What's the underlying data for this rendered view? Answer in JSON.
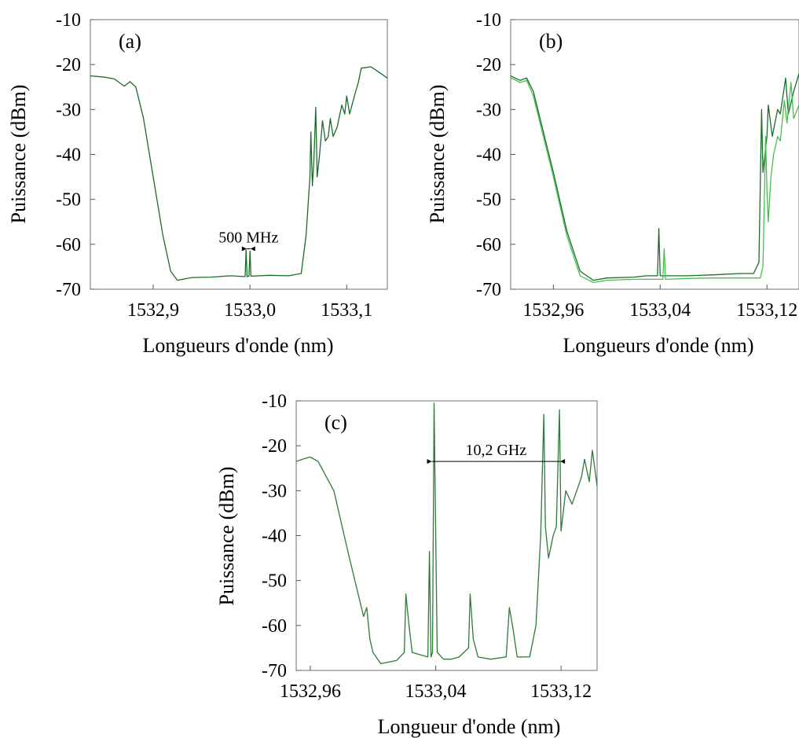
{
  "chart_data": [
    {
      "type": "line",
      "panel_label": "(a)",
      "ylabel": "Puissance (dBm)",
      "xlabel": "Longueurs d'onde (nm)",
      "xlim": [
        1532.835,
        1533.142
      ],
      "ylim": [
        -70,
        -10
      ],
      "xticks": [
        1532.9,
        1533.0,
        1533.1
      ],
      "xtick_labels": [
        "1532,9",
        "1533,0",
        "1533,1"
      ],
      "yticks": [
        -10,
        -20,
        -30,
        -40,
        -50,
        -60,
        -70
      ],
      "ytick_labels": [
        "-10",
        "-20",
        "-30",
        "-40",
        "-50",
        "-60",
        "-70"
      ],
      "annotations": [
        {
          "text": "500 MHz",
          "x1": 1532.9965,
          "x2": 1533.0005,
          "y": -61
        }
      ],
      "series": [
        {
          "color": "#1b6b2a",
          "points": [
            [
              1532.835,
              -22.5
            ],
            [
              1532.85,
              -22.8
            ],
            [
              1532.86,
              -23.2
            ],
            [
              1532.87,
              -24.8
            ],
            [
              1532.876,
              -23.8
            ],
            [
              1532.882,
              -25
            ],
            [
              1532.89,
              -32
            ],
            [
              1532.9,
              -45
            ],
            [
              1532.91,
              -58
            ],
            [
              1532.918,
              -66
            ],
            [
              1532.925,
              -68
            ],
            [
              1532.94,
              -67.4
            ],
            [
              1532.96,
              -67.3
            ],
            [
              1532.98,
              -67
            ],
            [
              1532.995,
              -67.2
            ],
            [
              1532.996,
              -61.2
            ],
            [
              1532.997,
              -67.2
            ],
            [
              1532.999,
              -67.1
            ],
            [
              1533.0,
              -61.5
            ],
            [
              1533.001,
              -67.1
            ],
            [
              1533.02,
              -66.9
            ],
            [
              1533.04,
              -67
            ],
            [
              1533.053,
              -66.5
            ],
            [
              1533.058,
              -58
            ],
            [
              1533.062,
              -45
            ],
            [
              1533.063,
              -35
            ],
            [
              1533.0645,
              -47
            ],
            [
              1533.066,
              -42
            ],
            [
              1533.068,
              -29.5
            ],
            [
              1533.0695,
              -45
            ],
            [
              1533.072,
              -40
            ],
            [
              1533.075,
              -32.5
            ],
            [
              1533.078,
              -37
            ],
            [
              1533.081,
              -36
            ],
            [
              1533.083,
              -32
            ],
            [
              1533.086,
              -36
            ],
            [
              1533.09,
              -34
            ],
            [
              1533.095,
              -29
            ],
            [
              1533.098,
              -31
            ],
            [
              1533.1,
              -27
            ],
            [
              1533.103,
              -31
            ],
            [
              1533.108,
              -27
            ],
            [
              1533.112,
              -24
            ],
            [
              1533.115,
              -20.8
            ],
            [
              1533.125,
              -20.5
            ],
            [
              1533.132,
              -21.5
            ],
            [
              1533.142,
              -23
            ]
          ]
        }
      ]
    },
    {
      "type": "line",
      "panel_label": "(b)",
      "ylabel": "Puissance (dBm)",
      "xlabel": "Longueurs d'onde (nm)",
      "xlim": [
        1532.928,
        1533.144
      ],
      "ylim": [
        -70,
        -10
      ],
      "xticks": [
        1532.96,
        1533.04,
        1533.12
      ],
      "xtick_labels": [
        "1532,96",
        "1533,04",
        "1533,12"
      ],
      "yticks": [
        -10,
        -20,
        -30,
        -40,
        -50,
        -60,
        -70
      ],
      "ytick_labels": [
        "-10",
        "-20",
        "-30",
        "-40",
        "-50",
        "-60",
        "-70"
      ],
      "series": [
        {
          "color": "#1b6b2a",
          "points": [
            [
              1532.928,
              -22.5
            ],
            [
              1532.93,
              -22.8
            ],
            [
              1532.935,
              -23.5
            ],
            [
              1532.94,
              -23
            ],
            [
              1532.945,
              -26
            ],
            [
              1532.95,
              -32
            ],
            [
              1532.96,
              -44
            ],
            [
              1532.97,
              -57
            ],
            [
              1532.98,
              -66
            ],
            [
              1532.99,
              -68
            ],
            [
              1533.0,
              -67.5
            ],
            [
              1533.02,
              -67.3
            ],
            [
              1533.03,
              -67
            ],
            [
              1533.038,
              -67
            ],
            [
              1533.039,
              -56.5
            ],
            [
              1533.04,
              -67
            ],
            [
              1533.06,
              -67
            ],
            [
              1533.08,
              -66.8
            ],
            [
              1533.1,
              -66.5
            ],
            [
              1533.11,
              -66.5
            ],
            [
              1533.114,
              -64
            ],
            [
              1533.116,
              -30
            ],
            [
              1533.117,
              -44
            ],
            [
              1533.12,
              -36
            ],
            [
              1533.121,
              -29
            ],
            [
              1533.124,
              -36
            ],
            [
              1533.128,
              -30
            ],
            [
              1533.13,
              -31
            ],
            [
              1533.134,
              -23
            ],
            [
              1533.136,
              -31
            ],
            [
              1533.14,
              -26
            ],
            [
              1533.144,
              -22
            ]
          ]
        },
        {
          "color": "#44c04a",
          "points": [
            [
              1532.928,
              -23
            ],
            [
              1532.93,
              -23.2
            ],
            [
              1532.935,
              -24
            ],
            [
              1532.94,
              -23.5
            ],
            [
              1532.945,
              -27
            ],
            [
              1532.95,
              -33
            ],
            [
              1532.96,
              -45
            ],
            [
              1532.97,
              -58
            ],
            [
              1532.98,
              -67
            ],
            [
              1532.99,
              -68.5
            ],
            [
              1533.0,
              -68
            ],
            [
              1533.02,
              -67.8
            ],
            [
              1533.04,
              -67.8
            ],
            [
              1533.042,
              -67.8
            ],
            [
              1533.043,
              -61
            ],
            [
              1533.044,
              -67.8
            ],
            [
              1533.06,
              -67.6
            ],
            [
              1533.08,
              -67.5
            ],
            [
              1533.1,
              -67.5
            ],
            [
              1533.115,
              -67.5
            ],
            [
              1533.117,
              -65
            ],
            [
              1533.119,
              -36
            ],
            [
              1533.12,
              -48
            ],
            [
              1533.121,
              -55
            ],
            [
              1533.123,
              -45
            ],
            [
              1533.125,
              -40
            ],
            [
              1533.128,
              -36
            ],
            [
              1533.13,
              -37
            ],
            [
              1533.133,
              -28
            ],
            [
              1533.135,
              -33
            ],
            [
              1533.138,
              -24
            ],
            [
              1533.14,
              -32
            ],
            [
              1533.144,
              -29
            ]
          ]
        }
      ]
    },
    {
      "type": "line",
      "panel_label": "(c)",
      "ylabel": "Puissance (dBm)",
      "xlabel": "Longueur d'onde (nm)",
      "xlim": [
        1532.951,
        1533.143
      ],
      "ylim": [
        -70,
        -10
      ],
      "xticks": [
        1532.96,
        1533.04,
        1533.12
      ],
      "xtick_labels": [
        "1532,96",
        "1533,04",
        "1533,12"
      ],
      "yticks": [
        -10,
        -20,
        -30,
        -40,
        -50,
        -60,
        -70
      ],
      "ytick_labels": [
        "-10",
        "-20",
        "-30",
        "-40",
        "-50",
        "-60",
        "-70"
      ],
      "annotations": [
        {
          "text": "10,2 GHz",
          "x1": 1533.0375,
          "x2": 1533.1195,
          "y": -23.5
        }
      ],
      "series": [
        {
          "color": "#2f7a3a",
          "points": [
            [
              1532.951,
              -23.5
            ],
            [
              1532.955,
              -23
            ],
            [
              1532.96,
              -22.5
            ],
            [
              1532.965,
              -23.5
            ],
            [
              1532.975,
              -30
            ],
            [
              1532.985,
              -45
            ],
            [
              1532.994,
              -58
            ],
            [
              1532.996,
              -56
            ],
            [
              1532.998,
              -63
            ],
            [
              1533.0,
              -66
            ],
            [
              1533.005,
              -68.5
            ],
            [
              1533.015,
              -67.8
            ],
            [
              1533.02,
              -66
            ],
            [
              1533.021,
              -53
            ],
            [
              1533.023,
              -60
            ],
            [
              1533.025,
              -66
            ],
            [
              1533.035,
              -67
            ],
            [
              1533.036,
              -43.5
            ],
            [
              1533.037,
              -67
            ],
            [
              1533.038,
              -66
            ],
            [
              1533.039,
              -10.5
            ],
            [
              1533.041,
              -66
            ],
            [
              1533.045,
              -67.5
            ],
            [
              1533.05,
              -67.5
            ],
            [
              1533.055,
              -67
            ],
            [
              1533.061,
              -65
            ],
            [
              1533.062,
              -53
            ],
            [
              1533.064,
              -63
            ],
            [
              1533.067,
              -67
            ],
            [
              1533.075,
              -67.5
            ],
            [
              1533.085,
              -67
            ],
            [
              1533.087,
              -56
            ],
            [
              1533.089,
              -60
            ],
            [
              1533.092,
              -67
            ],
            [
              1533.1,
              -67
            ],
            [
              1533.104,
              -60
            ],
            [
              1533.107,
              -40
            ],
            [
              1533.109,
              -13
            ],
            [
              1533.11,
              -38
            ],
            [
              1533.112,
              -45
            ],
            [
              1533.115,
              -40
            ],
            [
              1533.117,
              -38
            ],
            [
              1533.119,
              -12
            ],
            [
              1533.12,
              -39
            ],
            [
              1533.123,
              -30
            ],
            [
              1533.127,
              -33
            ],
            [
              1533.13,
              -30
            ],
            [
              1533.133,
              -27
            ],
            [
              1533.135,
              -23
            ],
            [
              1533.138,
              -28
            ],
            [
              1533.14,
              -21
            ],
            [
              1533.143,
              -29
            ]
          ]
        }
      ]
    }
  ]
}
